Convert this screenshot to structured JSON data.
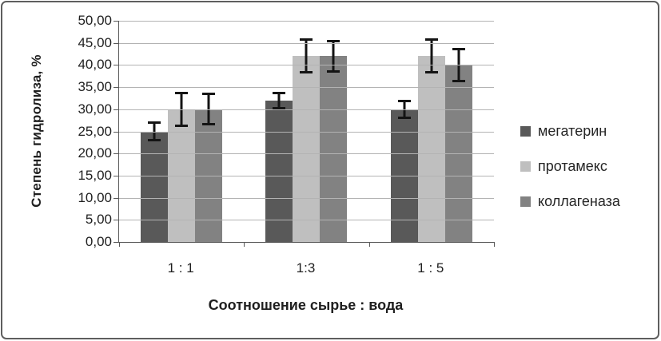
{
  "chart_data": {
    "type": "bar",
    "title": "",
    "ylabel": "Степень гидролиза, %",
    "xlabel": "Соотношение сырье : вода",
    "categories": [
      "1 : 1",
      "1:3",
      "1 : 5"
    ],
    "series": [
      {
        "name": "мегатерин",
        "color": "#595959",
        "values": [
          25,
          32,
          30
        ],
        "errors": [
          2.2,
          2.0,
          2.2
        ]
      },
      {
        "name": "протамекс",
        "color": "#bfbfbf",
        "values": [
          30,
          42,
          42
        ],
        "errors": [
          4.0,
          4.0,
          4.0
        ]
      },
      {
        "name": "коллагеназа",
        "color": "#828282",
        "values": [
          30,
          42,
          40
        ],
        "errors": [
          3.7,
          3.7,
          3.9
        ]
      }
    ],
    "ylim": [
      0,
      50
    ],
    "ytick_step": 5,
    "ytick_labels_top_to_bottom": [
      "50,00",
      "45,00",
      "40,00",
      "35,00",
      "30,00",
      "25,00",
      "20,00",
      "15,00",
      "10,00",
      "5,00",
      "0,00"
    ],
    "grid": true,
    "legend_position": "right",
    "error_bar_color": "#141414",
    "gridline_color": "#b3b3b3",
    "axis_color": "#595959",
    "frame_border_color": "#5f5f5f"
  }
}
